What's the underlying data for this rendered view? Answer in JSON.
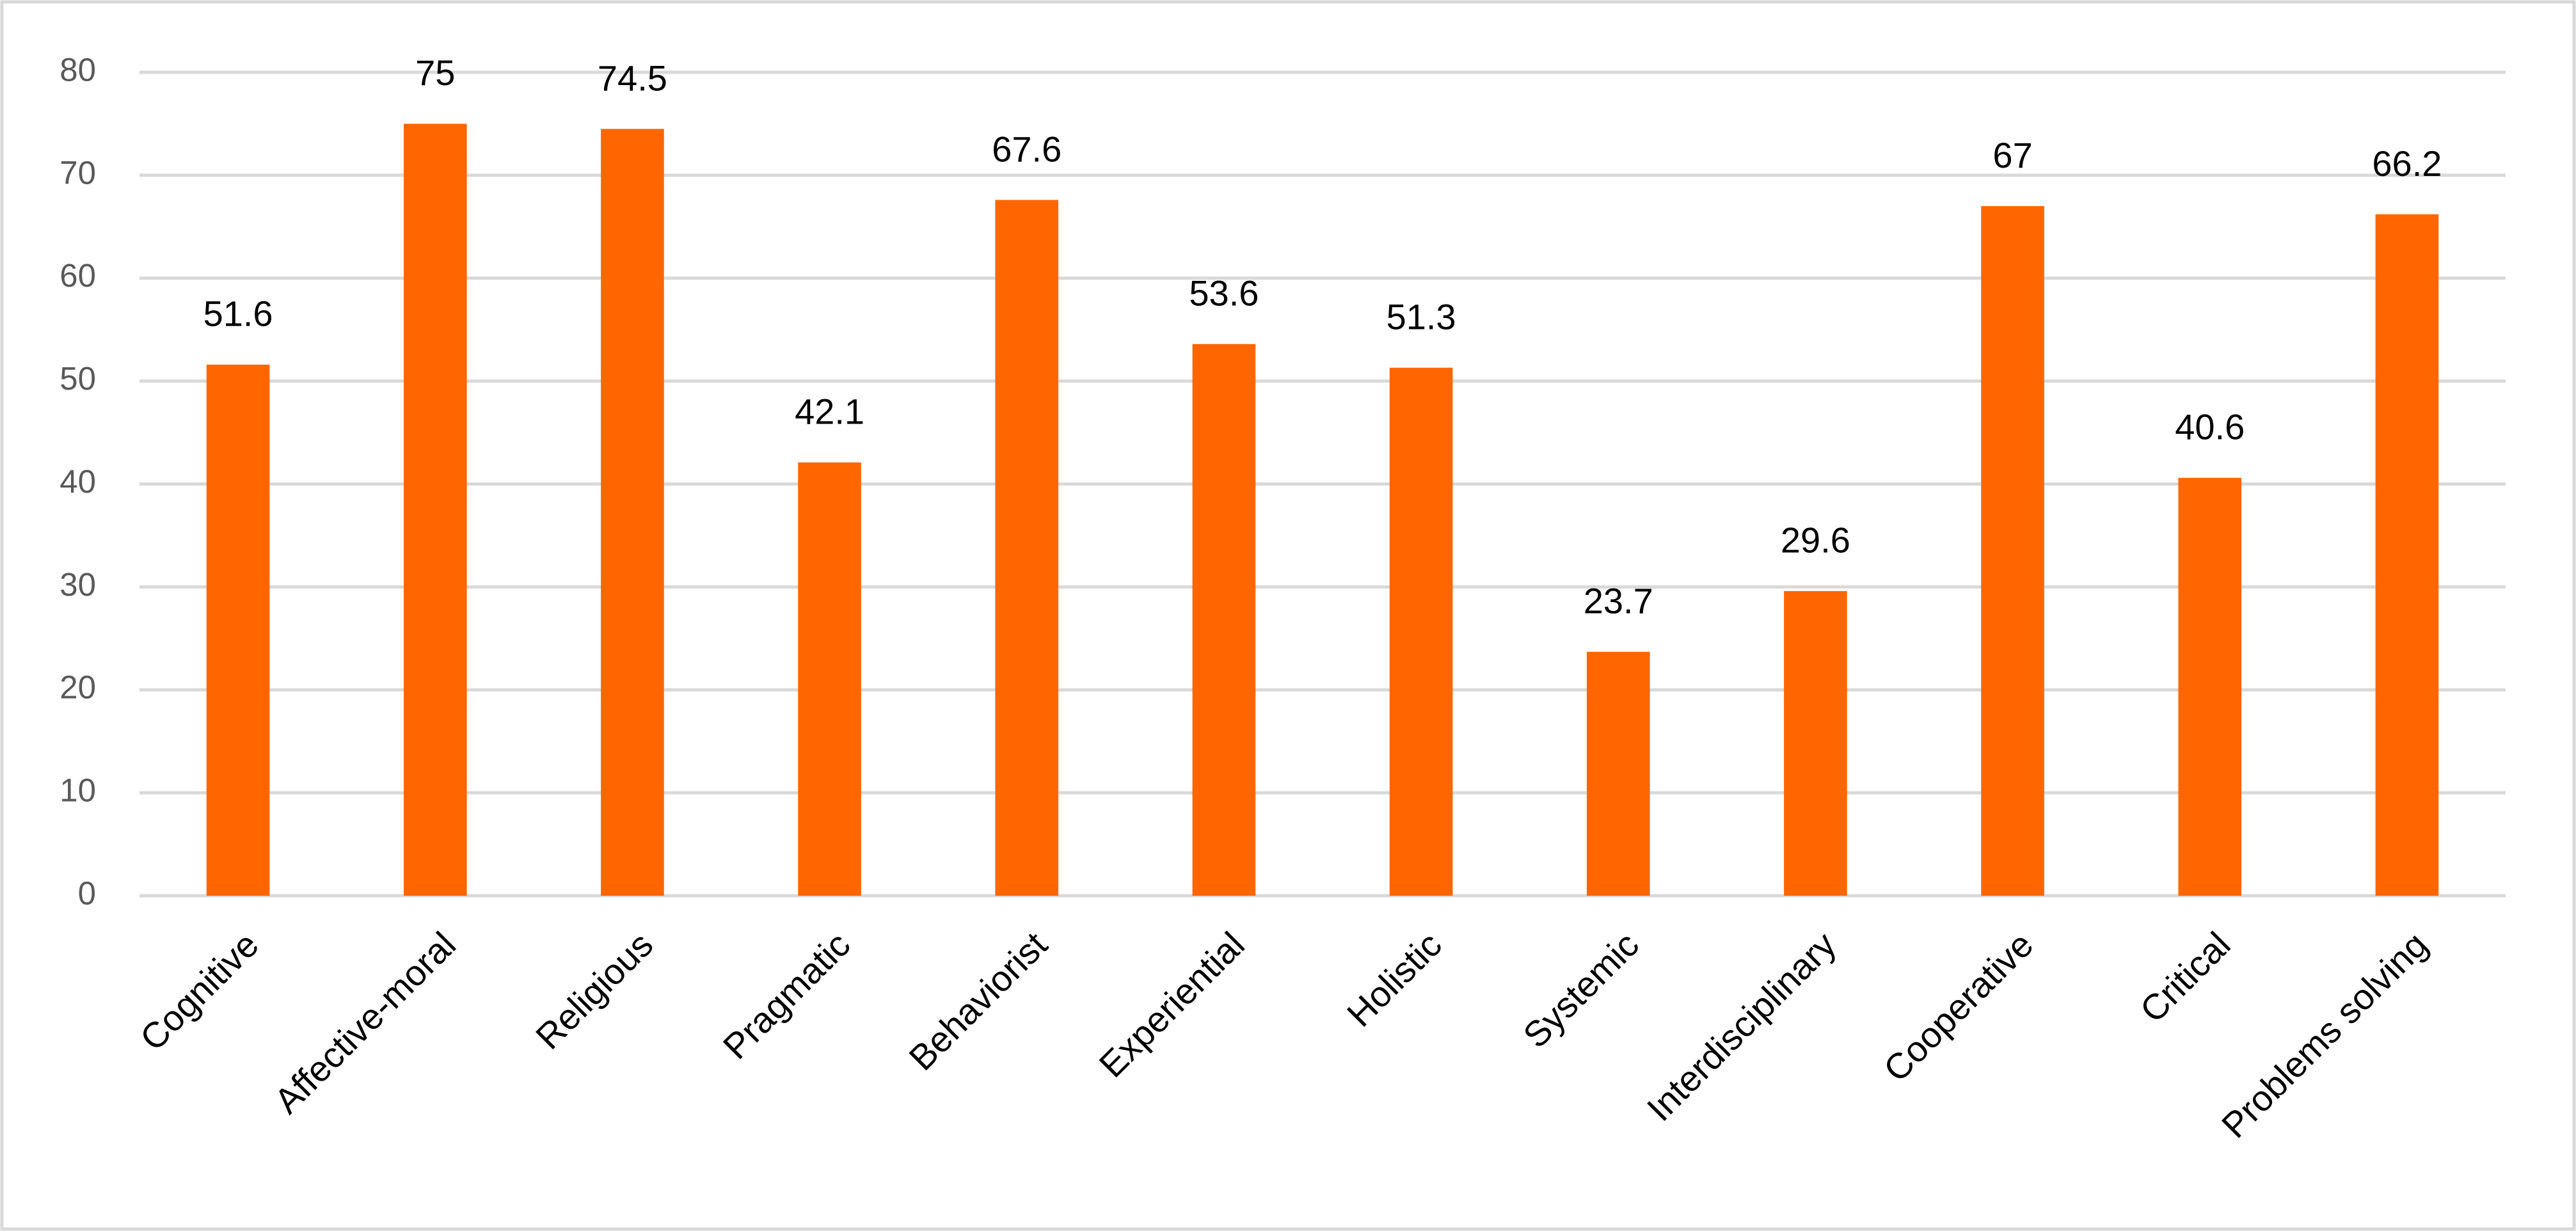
{
  "chart_data": {
    "type": "bar",
    "categories": [
      "Cognitive",
      "Affective-moral",
      "Religious",
      "Pragmatic",
      "Behaviorist",
      "Experiential",
      "Holistic",
      "Systemic",
      "Interdisciplinary",
      "Cooperative",
      "Critical",
      "Problems solving"
    ],
    "values": [
      51.6,
      75,
      74.5,
      42.1,
      67.6,
      53.6,
      51.3,
      23.7,
      29.6,
      67,
      40.6,
      66.2
    ],
    "color": "#ff6600",
    "ylim": [
      0,
      80
    ],
    "yticks": [
      0,
      10,
      20,
      30,
      40,
      50,
      60,
      70,
      80
    ],
    "grid": true
  }
}
